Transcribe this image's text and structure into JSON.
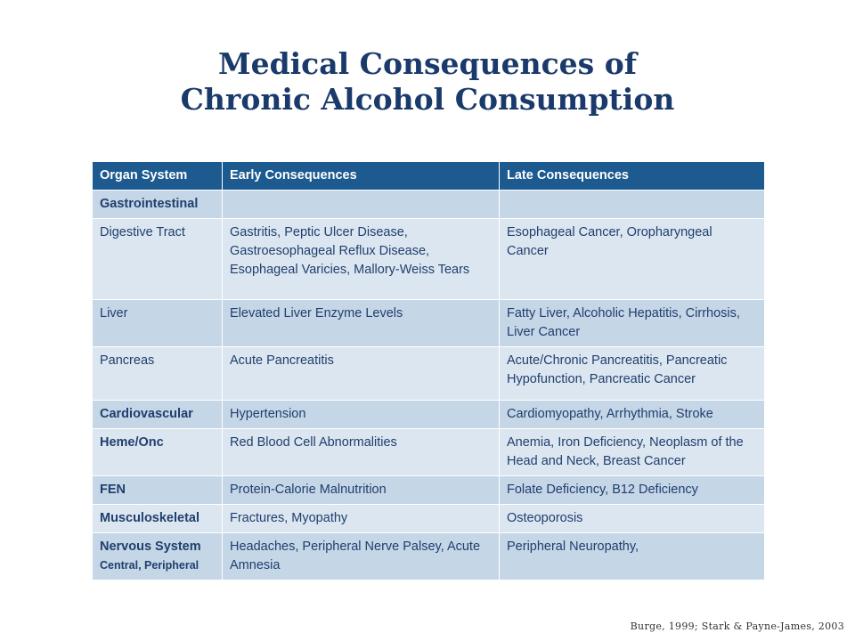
{
  "title": {
    "line1": "Medical Consequences of",
    "line2": "Chronic Alcohol Consumption"
  },
  "table": {
    "headers": [
      "Organ System",
      "Early Consequences",
      "Late Consequences"
    ],
    "rows": [
      {
        "organ": "Gastrointestinal",
        "sub": "",
        "early": "",
        "late": ""
      },
      {
        "organ": "Digestive Tract",
        "sub": "",
        "early": "Gastritis, Peptic Ulcer Disease, Gastroesophageal Reflux Disease, Esophageal Varicies, Mallory-Weiss Tears",
        "late": "Esophageal Cancer, Oropharyngeal Cancer"
      },
      {
        "organ": "Liver",
        "sub": "",
        "early": "Elevated Liver Enzyme Levels",
        "late": "Fatty Liver, Alcoholic Hepatitis, Cirrhosis, Liver Cancer"
      },
      {
        "organ": "Pancreas",
        "sub": "",
        "early": "Acute Pancreatitis",
        "late": "Acute/Chronic Pancreatitis, Pancreatic Hypofunction, Pancreatic Cancer"
      },
      {
        "organ": "Cardiovascular",
        "sub": "",
        "early": "Hypertension",
        "late": "Cardiomyopathy, Arrhythmia, Stroke"
      },
      {
        "organ": "Heme/Onc",
        "sub": "",
        "early": "Red Blood Cell Abnormalities",
        "late": "Anemia, Iron Deficiency, Neoplasm of the Head and Neck, Breast Cancer"
      },
      {
        "organ": "FEN",
        "sub": "",
        "early": "Protein-Calorie Malnutrition",
        "late": "Folate Deficiency, B12 Deficiency"
      },
      {
        "organ": "Musculoskeletal",
        "sub": "",
        "early": "Fractures, Myopathy",
        "late": "Osteoporosis"
      },
      {
        "organ": "Nervous System",
        "sub": "Central, Peripheral",
        "early": "Headaches, Peripheral Nerve Palsey, Acute Amnesia",
        "late": "Peripheral Neuropathy,"
      }
    ]
  },
  "citation": "Burge, 1999; Stark & Payne-James, 2003"
}
